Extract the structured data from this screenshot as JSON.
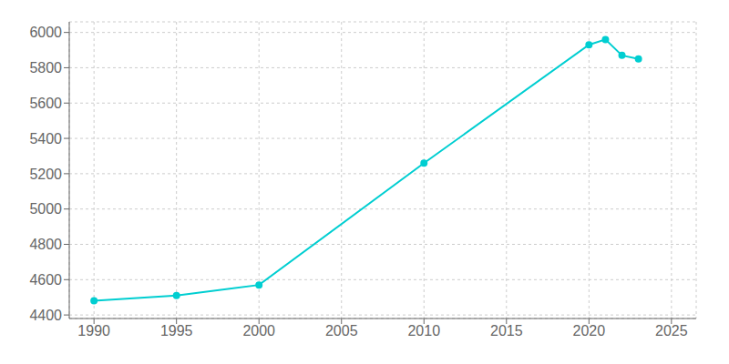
{
  "chart_data": {
    "type": "line",
    "x": [
      1990,
      1995,
      2000,
      2010,
      2020,
      2021,
      2022,
      2023
    ],
    "values": [
      4480,
      4510,
      4570,
      5260,
      5930,
      5960,
      5870,
      5850
    ],
    "color": "#00CED1",
    "marker": "circle",
    "xlim": [
      1988.5,
      2026.5
    ],
    "xticks": [
      1990,
      1995,
      2000,
      2005,
      2010,
      2015,
      2020,
      2025
    ],
    "ylim": [
      4380,
      6060
    ],
    "yticks": [
      4400,
      4600,
      4800,
      5000,
      5200,
      5400,
      5600,
      5800,
      6000
    ],
    "grid": true
  }
}
